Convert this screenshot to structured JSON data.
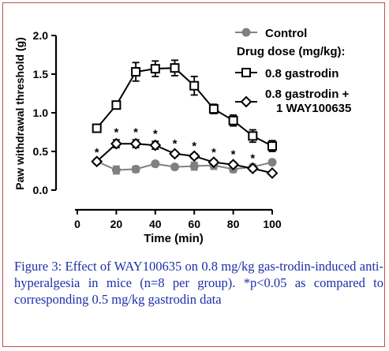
{
  "caption": "Figure 3: Effect of WAY100635 on 0.8 mg/kg gas-trodin-induced anti-hyperalgesia in mice (n=8 per group). *p<0.05 as compared to corresponding 0.5 mg/kg gastrodin data",
  "chart_data": {
    "type": "line",
    "xlabel": "Time (min)",
    "ylabel": "Paw withdrawal threshold (g)",
    "xlim": [
      0,
      100
    ],
    "ylim": [
      0,
      2.0
    ],
    "xticks": [
      "0",
      "20",
      "40",
      "60",
      "80",
      "100"
    ],
    "yticks": [
      "0.0",
      "0.5",
      "1.0",
      "1.5",
      "2.0"
    ],
    "legend": {
      "placement": "top-right",
      "control_label": "Control",
      "group_title": "Drug dose (mg/kg):",
      "gastrodin_label": "0.8 gastrodin",
      "combo_label_line1": "0.8 gastrodin +",
      "combo_label_line2": "1 WAY100635"
    },
    "significance_marker": "*",
    "series": [
      {
        "name": "Control",
        "marker": "circle",
        "color": "#808080",
        "x": [
          10,
          20,
          30,
          40,
          50,
          60,
          70,
          80,
          90,
          100
        ],
        "y": [
          0.37,
          0.26,
          0.27,
          0.34,
          0.3,
          0.31,
          0.32,
          0.27,
          0.3,
          0.36
        ],
        "err": [
          0.03,
          0.05,
          0.04,
          0.03,
          0.03,
          0.05,
          0.05,
          0.04,
          0.03,
          0.03
        ]
      },
      {
        "name": "0.8 gastrodin",
        "marker": "square",
        "color": "#000000",
        "x": [
          10,
          20,
          30,
          40,
          50,
          60,
          70,
          80,
          90,
          100
        ],
        "y": [
          0.8,
          1.1,
          1.53,
          1.57,
          1.58,
          1.35,
          1.05,
          0.9,
          0.7,
          0.57
        ],
        "err": [
          0.05,
          0.05,
          0.12,
          0.1,
          0.1,
          0.12,
          0.06,
          0.07,
          0.08,
          0.07
        ]
      },
      {
        "name": "0.8 gastrodin + 1 WAY100635",
        "marker": "diamond",
        "color": "#000000",
        "x": [
          10,
          20,
          30,
          40,
          50,
          60,
          70,
          80,
          90,
          100
        ],
        "y": [
          0.37,
          0.6,
          0.6,
          0.58,
          0.47,
          0.44,
          0.36,
          0.33,
          0.28,
          0.22
        ],
        "err": [
          0.02,
          0.05,
          0.05,
          0.05,
          0.03,
          0.03,
          0.03,
          0.03,
          0.03,
          0.02
        ],
        "significant": [
          true,
          true,
          true,
          true,
          true,
          true,
          true,
          true,
          true,
          false
        ]
      }
    ]
  }
}
